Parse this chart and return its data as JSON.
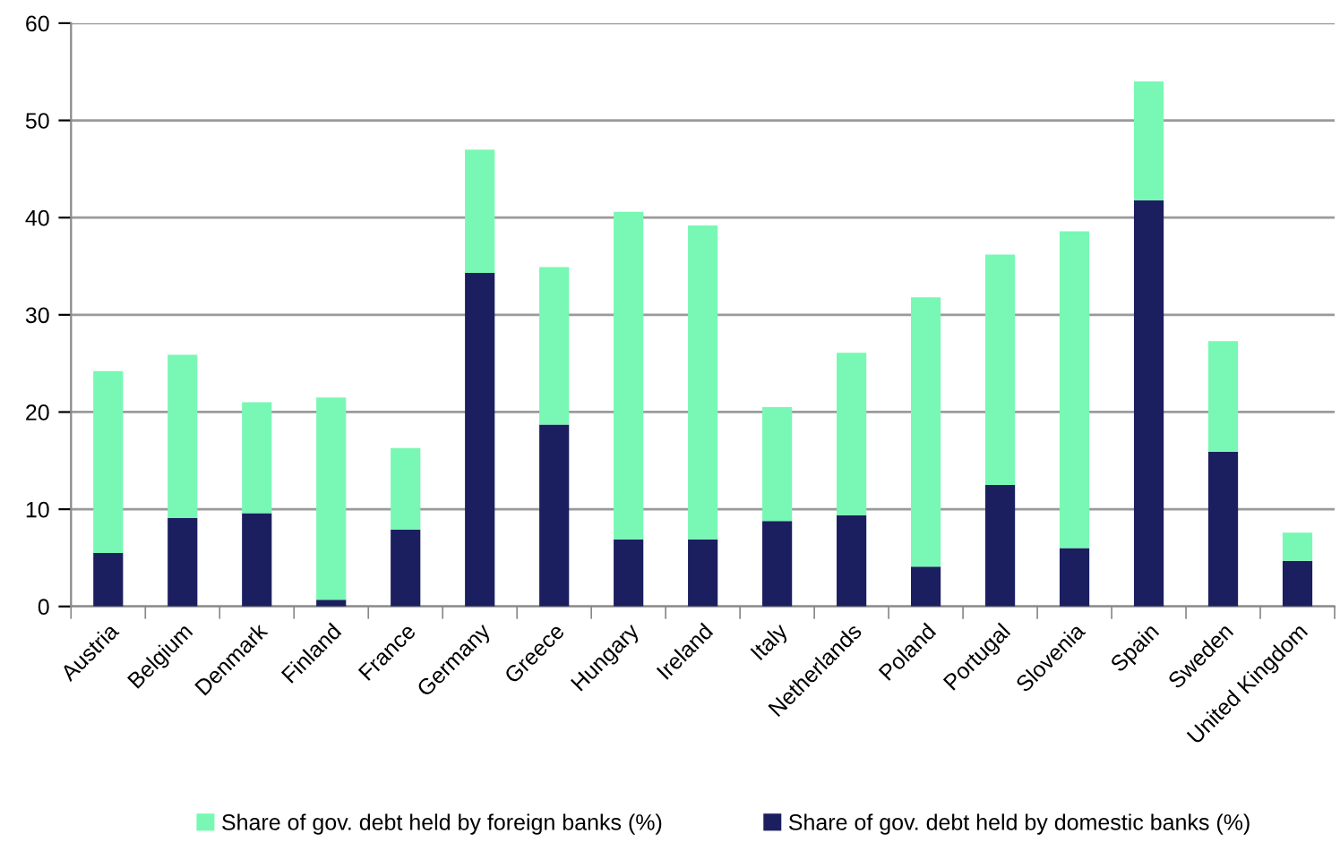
{
  "chart_data": {
    "type": "bar",
    "stacked": true,
    "categories": [
      "Austria",
      "Belgium",
      "Denmark",
      "Finland",
      "France",
      "Germany",
      "Greece",
      "Hungary",
      "Ireland",
      "Italy",
      "Netherlands",
      "Poland",
      "Portugal",
      "Slovenia",
      "Spain",
      "Sweden",
      "United Kingdom"
    ],
    "series": [
      {
        "name": "Share of gov. debt held by domestic banks (%)",
        "color": "#1b1f60",
        "values": [
          5.5,
          9.1,
          9.6,
          0.7,
          7.9,
          34.3,
          18.7,
          6.9,
          6.9,
          8.8,
          9.4,
          4.1,
          12.5,
          6.0,
          41.8,
          15.9,
          4.7
        ]
      },
      {
        "name": "Share of gov. debt held by foreign banks (%)",
        "color": "#78f8b4",
        "values": [
          18.7,
          16.8,
          11.4,
          20.8,
          8.4,
          12.7,
          16.2,
          33.7,
          32.3,
          11.7,
          16.7,
          27.7,
          23.7,
          32.6,
          12.2,
          11.4,
          2.9
        ]
      }
    ],
    "ylim": [
      0,
      60
    ],
    "yticks": [
      0,
      10,
      20,
      30,
      40,
      50,
      60
    ],
    "grid": "y",
    "legend": "bottom"
  }
}
